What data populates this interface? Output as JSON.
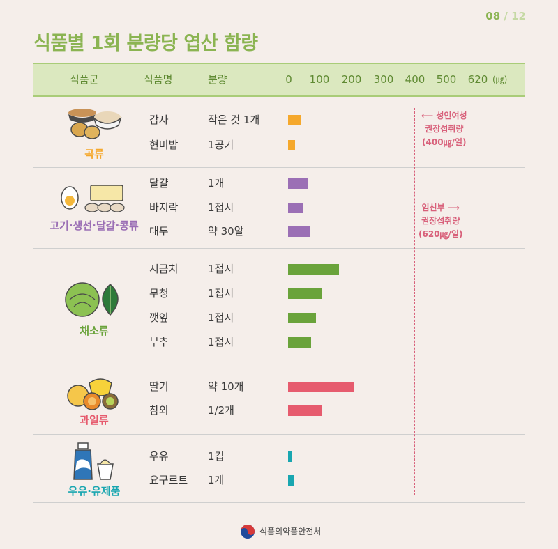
{
  "page": {
    "current": "08",
    "slash": "/",
    "total": "12"
  },
  "title": "식품별 1회 분량당 엽산 함량",
  "header": {
    "group": "식품군",
    "food": "식품명",
    "amount": "분량",
    "ticks": [
      "0",
      "100",
      "200",
      "300",
      "400",
      "500",
      "620"
    ],
    "unit": "(㎍)"
  },
  "colors": {
    "grains": "#f5a82c",
    "protein": "#9b6fb5",
    "vegetables": "#6aa33b",
    "fruits": "#e65b6e",
    "dairy": "#19a6b0",
    "title": "#8bb452",
    "reference": "#d8607a"
  },
  "groups": [
    {
      "label": "곡류",
      "icon": "grain-bowls-icon"
    },
    {
      "label": "고기·생선·달걀·콩류",
      "icon": "egg-tofu-icon"
    },
    {
      "label": "채소류",
      "icon": "cabbage-leaf-icon"
    },
    {
      "label": "과일류",
      "icon": "fruits-icon"
    },
    {
      "label": "우유·유제품",
      "icon": "milk-yogurt-icon"
    }
  ],
  "chart_data": {
    "type": "bar",
    "orientation": "horizontal",
    "unit": "㎍",
    "xlim": [
      0,
      620
    ],
    "x_ticks": [
      0,
      100,
      200,
      300,
      400,
      500,
      620
    ],
    "rows": [
      {
        "group": "곡류",
        "food": "감자",
        "amount": "작은 것 1개",
        "value": 43
      },
      {
        "group": "곡류",
        "food": "현미밥",
        "amount": "1공기",
        "value": 22
      },
      {
        "group": "고기·생선·달걀·콩류",
        "food": "달걀",
        "amount": "1개",
        "value": 66
      },
      {
        "group": "고기·생선·달걀·콩류",
        "food": "바지락",
        "amount": "1접시",
        "value": 50
      },
      {
        "group": "고기·생선·달걀·콩류",
        "food": "대두",
        "amount": "약 30알",
        "value": 72
      },
      {
        "group": "채소류",
        "food": "시금치",
        "amount": "1접시",
        "value": 163
      },
      {
        "group": "채소류",
        "food": "무청",
        "amount": "1접시",
        "value": 111
      },
      {
        "group": "채소류",
        "food": "깻잎",
        "amount": "1접시",
        "value": 92
      },
      {
        "group": "채소류",
        "food": "부추",
        "amount": "1접시",
        "value": 76
      },
      {
        "group": "과일류",
        "food": "딸기",
        "amount": "약 10개",
        "value": 210
      },
      {
        "group": "과일류",
        "food": "참외",
        "amount": "1/2개",
        "value": 111
      },
      {
        "group": "우유·유제품",
        "food": "우유",
        "amount": "1컵",
        "value": 11
      },
      {
        "group": "우유·유제품",
        "food": "요구르트",
        "amount": "1개",
        "value": 18
      }
    ],
    "reference_lines": [
      {
        "value": 400,
        "label_lines": [
          "성인여성",
          "권장섭취량",
          "(400㎍/일)"
        ]
      },
      {
        "value": 620,
        "label_lines": [
          "임신부",
          "권장섭취량",
          "(620㎍/일)"
        ]
      }
    ]
  },
  "footer": {
    "org": "식품의약품안전처",
    "logo": "taegeuk-logo-icon"
  }
}
